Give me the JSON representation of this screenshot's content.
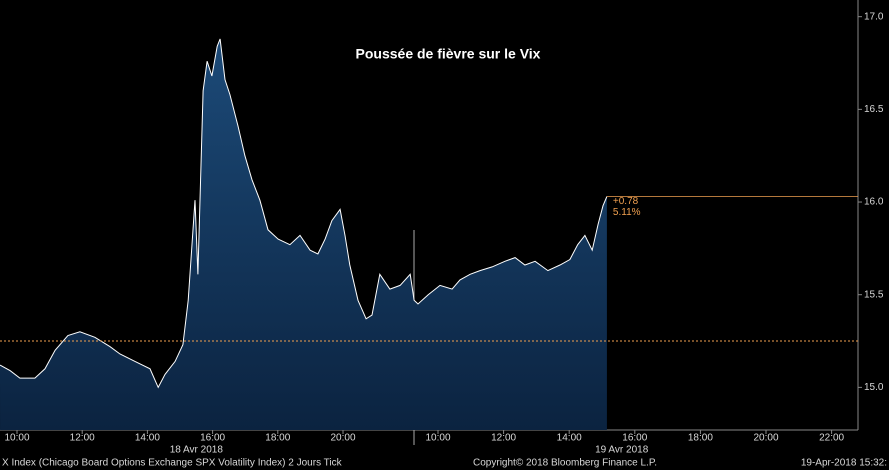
{
  "chart_data": {
    "type": "area",
    "title": "Poussée de fièvre sur le Vix",
    "color": "#ffffff",
    "fill": "#123a60",
    "x": [
      9.48,
      9.79,
      10.09,
      10.55,
      10.86,
      11.17,
      11.56,
      11.93,
      12.39,
      12.85,
      13.16,
      13.62,
      14.08,
      14.33,
      14.54,
      14.85,
      15.09,
      15.25,
      15.46,
      15.55,
      15.71,
      15.83,
      15.98,
      16.14,
      16.23,
      16.38,
      16.53,
      16.78,
      16.99,
      17.21,
      17.45,
      17.7,
      18.01,
      18.37,
      18.68,
      18.99,
      19.23,
      19.45,
      19.66,
      19.91,
      20.06,
      20.21,
      20.46,
      20.71,
      20.89,
      21.13,
      21.44,
      21.75,
      22.06,
      22.18,
      33.39,
      33.7,
      34.06,
      34.43,
      34.67,
      34.98,
      35.28,
      35.65,
      36.04,
      36.35,
      36.65,
      36.96,
      37.35,
      37.72,
      38.02,
      38.26,
      38.48,
      38.7,
      38.88,
      39.03,
      39.15
    ],
    "values": [
      15.12,
      15.09,
      15.05,
      15.05,
      15.1,
      15.2,
      15.28,
      15.3,
      15.27,
      15.22,
      15.18,
      15.14,
      15.1,
      15.0,
      15.07,
      15.14,
      15.23,
      15.47,
      16.01,
      15.61,
      16.6,
      16.76,
      16.68,
      16.84,
      16.88,
      16.66,
      16.58,
      16.41,
      16.25,
      16.12,
      16.01,
      15.85,
      15.8,
      15.77,
      15.82,
      15.74,
      15.72,
      15.8,
      15.9,
      15.96,
      15.82,
      15.66,
      15.47,
      15.37,
      15.39,
      15.61,
      15.53,
      15.55,
      15.61,
      15.47,
      15.45,
      15.5,
      15.55,
      15.53,
      15.58,
      15.61,
      15.63,
      15.65,
      15.68,
      15.7,
      15.66,
      15.68,
      15.63,
      15.66,
      15.69,
      15.77,
      15.82,
      15.74,
      15.88,
      15.98,
      16.03
    ],
    "ylim": [
      14.77,
      17.09
    ],
    "yticks": [
      {
        "value": 15.0,
        "label": "15.0"
      },
      15.5,
      {
        "value": 16.0,
        "label": "16.0"
      },
      16.5,
      {
        "value": 17.0,
        "label": "17.0"
      }
    ],
    "xlim": [
      9.48,
      47.2
    ],
    "xticks": [
      {
        "value": 10,
        "label": "10:00"
      },
      {
        "value": 12,
        "label": "12:00"
      },
      {
        "value": 14,
        "label": "14:00"
      },
      {
        "value": 16,
        "label": "16:00"
      },
      {
        "value": 18,
        "label": "18:00"
      },
      {
        "value": 20,
        "label": "20:00"
      },
      {
        "value": 34,
        "label": "10:00"
      },
      {
        "value": 36,
        "label": "12:00"
      },
      {
        "value": 38,
        "label": "14:00"
      },
      {
        "value": 40,
        "label": "16:00"
      },
      {
        "value": 42,
        "label": "18:00"
      },
      {
        "value": 44,
        "label": "20:00"
      },
      {
        "value": 46,
        "label": "22:00"
      }
    ],
    "day_labels": [
      {
        "value": 15.5,
        "label": "18 Avr 2018"
      },
      {
        "value": 39.6,
        "label": "19 Avr 2018"
      }
    ],
    "reference_line": 15.25,
    "last_value": 16.03,
    "annotations": [
      {
        "value": 0.78,
        "label": "+0.78"
      },
      {
        "value": 5.11,
        "label": "5.11%"
      }
    ],
    "footer": [
      "X Index (Chicago Board Options Exchange SPX Volatility Index) 2 Jours  Tick",
      "Copyright© 2018 Bloomberg Finance L.P.",
      "19-Apr-2018 15:32:"
    ]
  }
}
